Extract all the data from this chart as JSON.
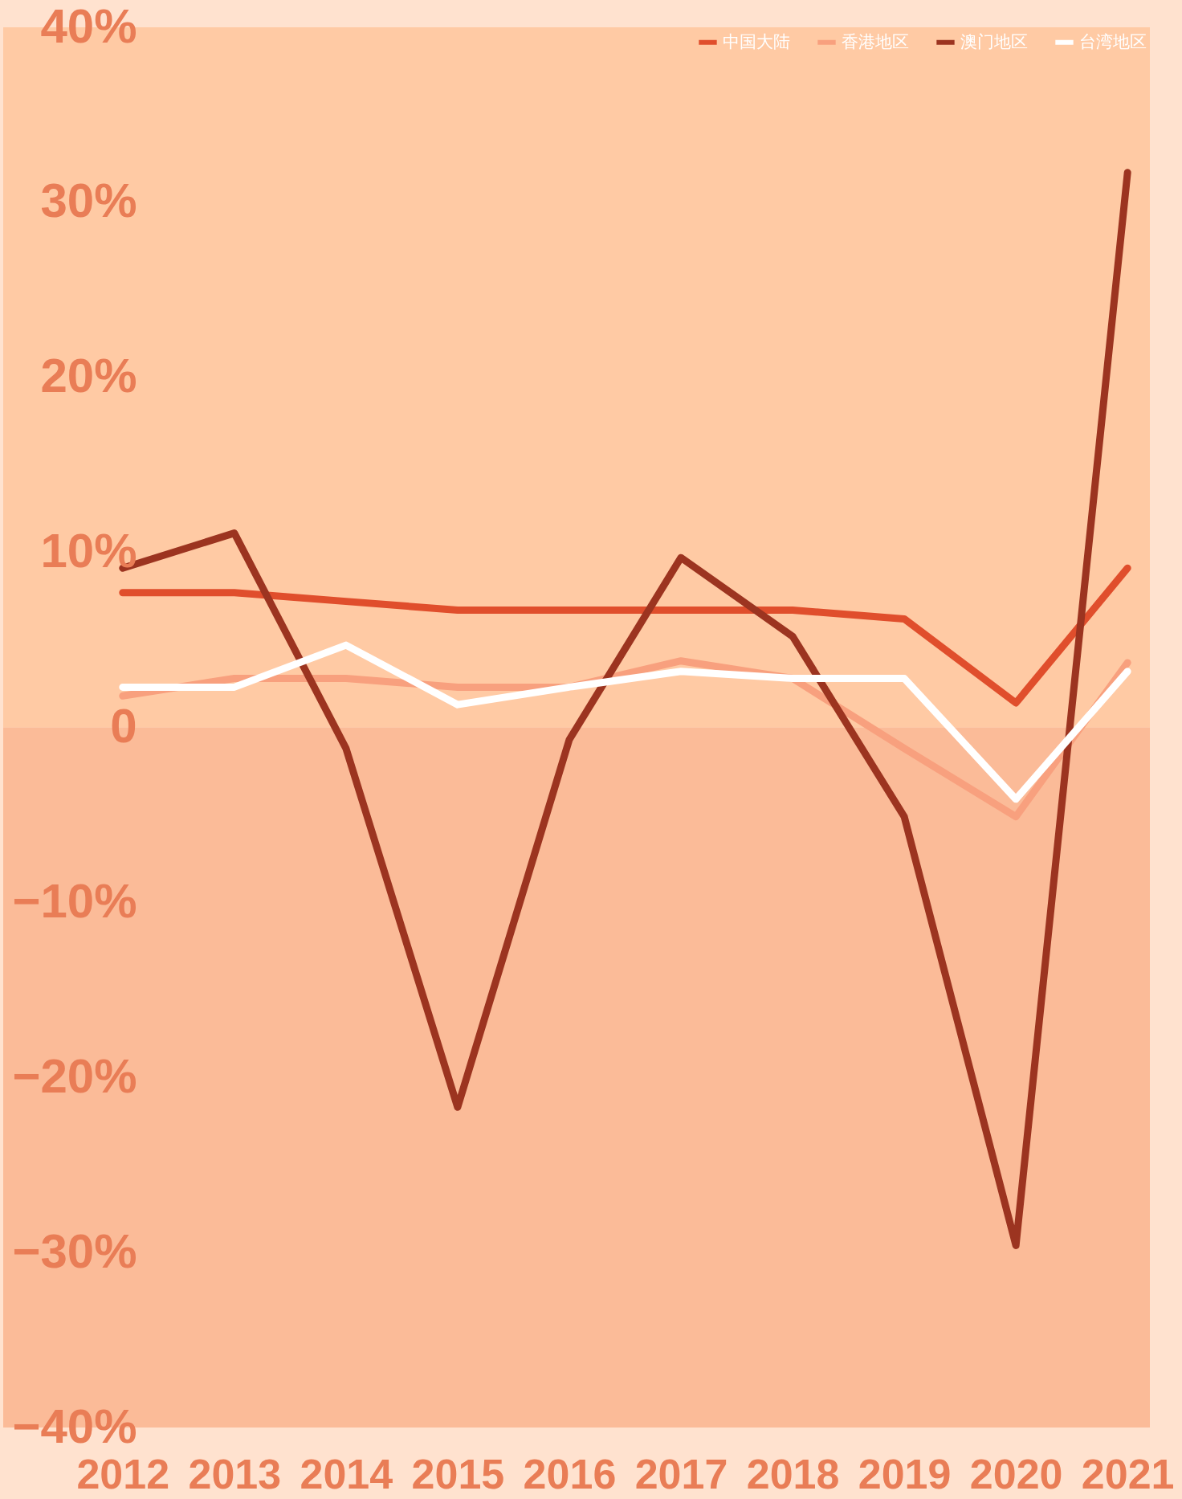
{
  "chart_data": {
    "type": "line",
    "categories": [
      "2012",
      "2013",
      "2014",
      "2015",
      "2016",
      "2017",
      "2018",
      "2019",
      "2020",
      "2021"
    ],
    "series": [
      {
        "name": "中国大陆",
        "color": "#e04e2c",
        "values": [
          7.7,
          7.7,
          7.2,
          6.7,
          6.7,
          6.7,
          6.7,
          6.2,
          1.4,
          9.1
        ]
      },
      {
        "name": "香港地区",
        "color": "#f8a07e",
        "values": [
          1.8,
          2.8,
          2.8,
          2.3,
          2.3,
          3.8,
          2.8,
          -1.2,
          -5.1,
          3.7
        ]
      },
      {
        "name": "澳门地区",
        "color": "#9c3420",
        "values": [
          9.1,
          11.1,
          -1.2,
          -21.7,
          -0.7,
          9.7,
          5.2,
          -5.1,
          -29.6,
          31.7
        ]
      },
      {
        "name": "台湾地区",
        "color": "#ffffff",
        "values": [
          2.3,
          2.3,
          4.7,
          1.3,
          2.3,
          3.2,
          2.8,
          2.8,
          -4.1,
          3.2
        ]
      }
    ],
    "ylim": [
      -40,
      40
    ],
    "yticks": [
      {
        "value": -40,
        "label": "−40%"
      },
      {
        "value": -30,
        "label": "−30%"
      },
      {
        "value": -20,
        "label": "−20%"
      },
      {
        "value": -10,
        "label": "−10%"
      },
      0,
      {
        "value": 10,
        "label": "10%"
      },
      {
        "value": 20,
        "label": "20%"
      },
      {
        "value": 30,
        "label": "30%"
      },
      {
        "value": 40,
        "label": "40%"
      }
    ],
    "bands": [
      {
        "axis": "y",
        "from": 0,
        "to": 40,
        "color": "#ffcaa4"
      },
      {
        "axis": "y",
        "from": -40,
        "to": 0,
        "color": "#fbbb98"
      }
    ],
    "legend": "top right",
    "grid": false,
    "line_style": "solid"
  }
}
